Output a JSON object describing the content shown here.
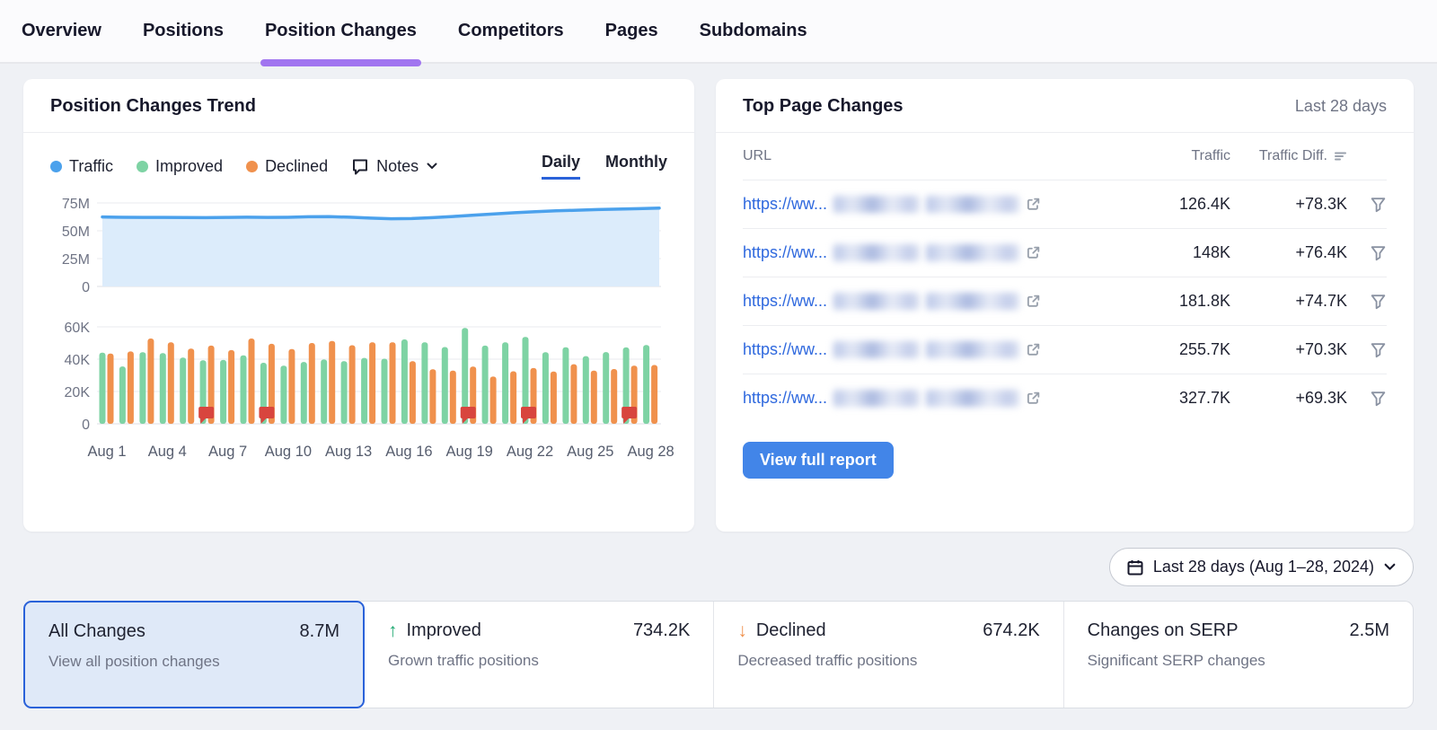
{
  "nav": {
    "tabs": [
      {
        "label": "Overview",
        "active": false
      },
      {
        "label": "Positions",
        "active": false
      },
      {
        "label": "Position Changes",
        "active": true
      },
      {
        "label": "Competitors",
        "active": false
      },
      {
        "label": "Pages",
        "active": false
      },
      {
        "label": "Subdomains",
        "active": false
      }
    ]
  },
  "trend_card": {
    "title": "Position Changes Trend",
    "legend": [
      {
        "name": "Traffic",
        "color": "#4BA1EC"
      },
      {
        "name": "Improved",
        "color": "#7ED3A4"
      },
      {
        "name": "Declined",
        "color": "#F0914D"
      }
    ],
    "notes_label": "Notes",
    "toggle": {
      "daily": "Daily",
      "monthly": "Monthly",
      "selected": "Daily"
    }
  },
  "chart_data": [
    {
      "type": "area",
      "name": "Traffic",
      "categories": [
        "Aug 1",
        "Aug 2",
        "Aug 3",
        "Aug 4",
        "Aug 5",
        "Aug 6",
        "Aug 7",
        "Aug 8",
        "Aug 9",
        "Aug 10",
        "Aug 11",
        "Aug 12",
        "Aug 13",
        "Aug 14",
        "Aug 15",
        "Aug 16",
        "Aug 17",
        "Aug 18",
        "Aug 19",
        "Aug 20",
        "Aug 21",
        "Aug 22",
        "Aug 23",
        "Aug 24",
        "Aug 25",
        "Aug 26",
        "Aug 27",
        "Aug 28"
      ],
      "values_millions": [
        62.4,
        62.1,
        62.0,
        62.0,
        61.9,
        61.8,
        62.0,
        62.2,
        62.0,
        62.1,
        62.6,
        62.7,
        62.2,
        61.4,
        60.8,
        61.0,
        61.8,
        62.8,
        64.0,
        65.2,
        66.2,
        67.1,
        67.9,
        68.5,
        69.0,
        69.4,
        69.8,
        70.4
      ],
      "ylim_millions": [
        0,
        75
      ],
      "ytick_values": [
        0,
        25,
        50,
        75
      ],
      "ytick_labels": [
        "0",
        "25M",
        "50M",
        "75M"
      ],
      "grid": true,
      "line_color": "#4BA1EC",
      "fill_color": "#DCECFB"
    },
    {
      "type": "bar",
      "categories": [
        "Aug 1",
        "Aug 2",
        "Aug 3",
        "Aug 4",
        "Aug 5",
        "Aug 6",
        "Aug 7",
        "Aug 8",
        "Aug 9",
        "Aug 10",
        "Aug 11",
        "Aug 12",
        "Aug 13",
        "Aug 14",
        "Aug 15",
        "Aug 16",
        "Aug 17",
        "Aug 18",
        "Aug 19",
        "Aug 20",
        "Aug 21",
        "Aug 22",
        "Aug 23",
        "Aug 24",
        "Aug 25",
        "Aug 26",
        "Aug 27",
        "Aug 28"
      ],
      "series": [
        {
          "name": "Improved",
          "color": "#7ED3A4",
          "values_thousands": [
            44,
            35.5,
            44.3,
            43.8,
            41,
            39.3,
            39.5,
            42.4,
            37.8,
            36,
            38.3,
            39.8,
            38.8,
            40.8,
            40.3,
            52.2,
            50.4,
            47.5,
            59.3,
            48.4,
            50.4,
            53.8,
            44.3,
            47.4,
            41.9,
            44.4,
            47.3,
            48.8
          ]
        },
        {
          "name": "Declined",
          "color": "#F0914D",
          "values_thousands": [
            43.5,
            44.8,
            52.8,
            50.4,
            46.5,
            48.4,
            45.6,
            52.8,
            49.5,
            46.3,
            50,
            51.3,
            48.6,
            50.4,
            50.4,
            38.8,
            33.8,
            32.9,
            35.4,
            29.2,
            32.5,
            34.5,
            32.4,
            36.9,
            32.9,
            33.9,
            36,
            36.4
          ]
        }
      ],
      "ylim_thousands": [
        0,
        60
      ],
      "ytick_values": [
        0,
        20,
        40,
        60
      ],
      "ytick_labels": [
        "0",
        "20K",
        "40K",
        "60K"
      ],
      "xtick_labels": [
        "Aug 1",
        "Aug 4",
        "Aug 7",
        "Aug 10",
        "Aug 13",
        "Aug 16",
        "Aug 19",
        "Aug 22",
        "Aug 25",
        "Aug 28"
      ],
      "note_flags_on": [
        "Aug 6",
        "Aug 9",
        "Aug 19",
        "Aug 22",
        "Aug 27"
      ],
      "flag_color": "#D8453E",
      "grid": true
    }
  ],
  "top_pages_card": {
    "title": "Top Page Changes",
    "period": "Last 28 days",
    "columns": [
      "URL",
      "Traffic",
      "Traffic Diff."
    ],
    "rows": [
      {
        "url_prefix": "https://ww...",
        "url_redacted": true,
        "traffic": "126.4K",
        "traffic_diff": "+78.3K"
      },
      {
        "url_prefix": "https://ww...",
        "url_redacted": true,
        "traffic": "148K",
        "traffic_diff": "+76.4K"
      },
      {
        "url_prefix": "https://ww...",
        "url_redacted": true,
        "traffic": "181.8K",
        "traffic_diff": "+74.7K"
      },
      {
        "url_prefix": "https://ww...",
        "url_redacted": true,
        "traffic": "255.7K",
        "traffic_diff": "+70.3K"
      },
      {
        "url_prefix": "https://ww...",
        "url_redacted": true,
        "traffic": "327.7K",
        "traffic_diff": "+69.3K"
      }
    ],
    "button_label": "View full report"
  },
  "date_filter": {
    "label": "Last 28 days (Aug 1–28, 2024)"
  },
  "summary_cards": [
    {
      "title": "All Changes",
      "value": "8.7M",
      "subtitle": "View all position changes",
      "selected": true,
      "icon": null
    },
    {
      "title": "Improved",
      "value": "734.2K",
      "subtitle": "Grown traffic positions",
      "selected": false,
      "icon": "arrow-up",
      "icon_color": "#1FA971"
    },
    {
      "title": "Declined",
      "value": "674.2K",
      "subtitle": "Decreased traffic positions",
      "selected": false,
      "icon": "arrow-down",
      "icon_color": "#F0914D"
    },
    {
      "title": "Changes on SERP",
      "value": "2.5M",
      "subtitle": "Significant SERP changes",
      "selected": false,
      "icon": null
    }
  ],
  "colors": {
    "accent_purple": "#A175F0",
    "accent_blue": "#2A62D9",
    "traffic_blue": "#4BA1EC",
    "traffic_fill": "#DCECFB",
    "improved_green": "#7ED3A4",
    "declined_orange": "#F0914D",
    "flag_red": "#D8453E",
    "link_blue": "#2E68DE",
    "button_blue": "#4285E8",
    "selected_card_bg": "#DFE9F8",
    "page_bg": "#EFF1F5",
    "muted_text": "#6F7485",
    "text": "#1E2130"
  }
}
